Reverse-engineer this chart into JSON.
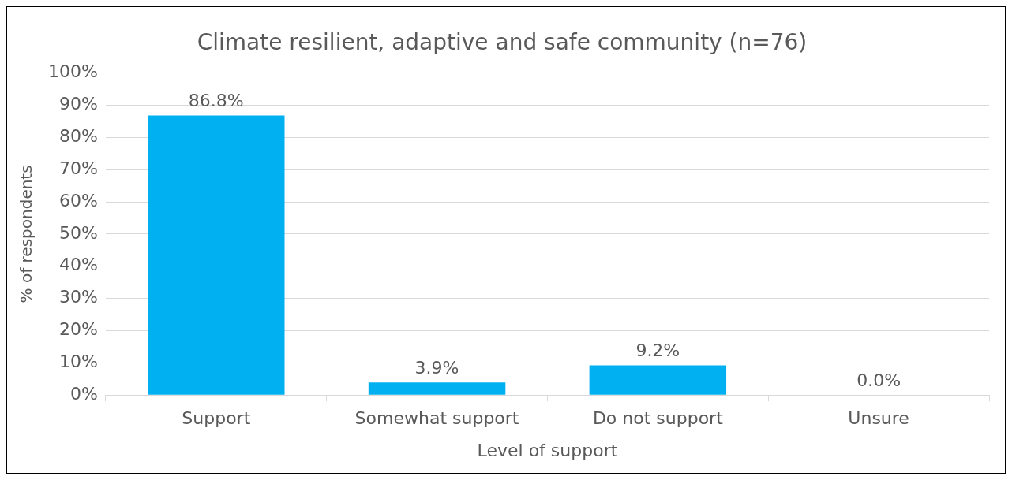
{
  "chart_data": {
    "type": "bar",
    "title": "Climate resilient, adaptive and safe community (n=76)",
    "xlabel": "Level of support",
    "ylabel": "% of respondents",
    "categories": [
      "Support",
      "Somewhat support",
      "Do not support",
      "Unsure"
    ],
    "values": [
      86.8,
      3.9,
      9.2,
      0.0
    ],
    "color": "#00b0f0",
    "value_labels": [
      "86.8%",
      "3.9%",
      "9.2%",
      "0.0%"
    ],
    "ylim": [
      0,
      100
    ],
    "yticks": [
      {
        "value": 0,
        "label": "0%"
      },
      {
        "value": 10,
        "label": "10%"
      },
      {
        "value": 20,
        "label": "20%"
      },
      {
        "value": 30,
        "label": "30%"
      },
      {
        "value": 40,
        "label": "40%"
      },
      {
        "value": 50,
        "label": "50%"
      },
      {
        "value": 60,
        "label": "60%"
      },
      {
        "value": 70,
        "label": "70%"
      },
      {
        "value": 80,
        "label": "80%"
      },
      {
        "value": 90,
        "label": "90%"
      },
      {
        "value": 100,
        "label": "100%"
      }
    ],
    "grid": "y",
    "legend": false
  }
}
